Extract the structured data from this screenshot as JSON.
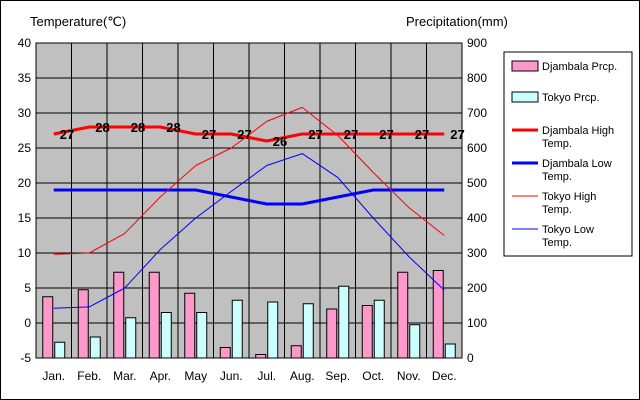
{
  "chart_data": {
    "type": "bar+line",
    "title": "",
    "y_left_label": "Temperature(℃)",
    "y_right_label": "Precipitation(mm)",
    "y_left_ticks": [
      "40",
      "35",
      "30",
      "25",
      "20",
      "15",
      "10",
      "5",
      "0",
      "-5"
    ],
    "y_right_ticks": [
      "900",
      "800",
      "700",
      "600",
      "500",
      "400",
      "300",
      "200",
      "100",
      "0"
    ],
    "ylim_left": [
      -5,
      40
    ],
    "ylim_right": [
      0,
      900
    ],
    "grid": true,
    "legend_position": "right",
    "categories": [
      "Jan.",
      "Feb.",
      "Mar.",
      "Apr.",
      "May",
      "Jun.",
      "Jul.",
      "Aug.",
      "Sep.",
      "Oct.",
      "Nov.",
      "Dec."
    ],
    "bar_series": [
      {
        "name": "Djambala Prcp.",
        "axis": "right",
        "color": "#ff99cc",
        "values": [
          175,
          195,
          245,
          245,
          185,
          30,
          10,
          35,
          140,
          150,
          245,
          250
        ]
      },
      {
        "name": "Tokyo Prcp.",
        "axis": "right",
        "color": "#ccffff",
        "values": [
          45,
          60,
          115,
          130,
          130,
          165,
          160,
          155,
          205,
          165,
          95,
          40
        ]
      }
    ],
    "line_series": [
      {
        "name": "Djambala High Temp.",
        "axis": "left",
        "color": "#ff0000",
        "width": 3,
        "values": [
          27,
          28,
          28,
          28,
          27,
          27,
          26,
          27,
          27,
          27,
          27,
          27
        ]
      },
      {
        "name": "Djambala Low Temp.",
        "axis": "left",
        "color": "#0000ff",
        "width": 3,
        "values": [
          19,
          19,
          19,
          19,
          19,
          18,
          17,
          17,
          18,
          19,
          19,
          19
        ]
      },
      {
        "name": "Tokyo High Temp.",
        "axis": "left",
        "color": "#ff0000",
        "width": 1,
        "values": [
          9.8,
          10,
          12.8,
          18,
          22.5,
          25,
          28.8,
          30.8,
          26.8,
          21.5,
          16.5,
          12.5
        ]
      },
      {
        "name": "Tokyo Low Temp.",
        "axis": "left",
        "color": "#0000ff",
        "width": 1,
        "values": [
          2.1,
          2.3,
          5,
          10.5,
          15,
          18.8,
          22.5,
          24.2,
          20.8,
          15,
          9.5,
          4.7
        ]
      }
    ],
    "data_labels": [
      "27",
      "28",
      "28",
      "28",
      "27",
      "27",
      "26",
      "27",
      "27",
      "27",
      "27",
      "27"
    ]
  }
}
